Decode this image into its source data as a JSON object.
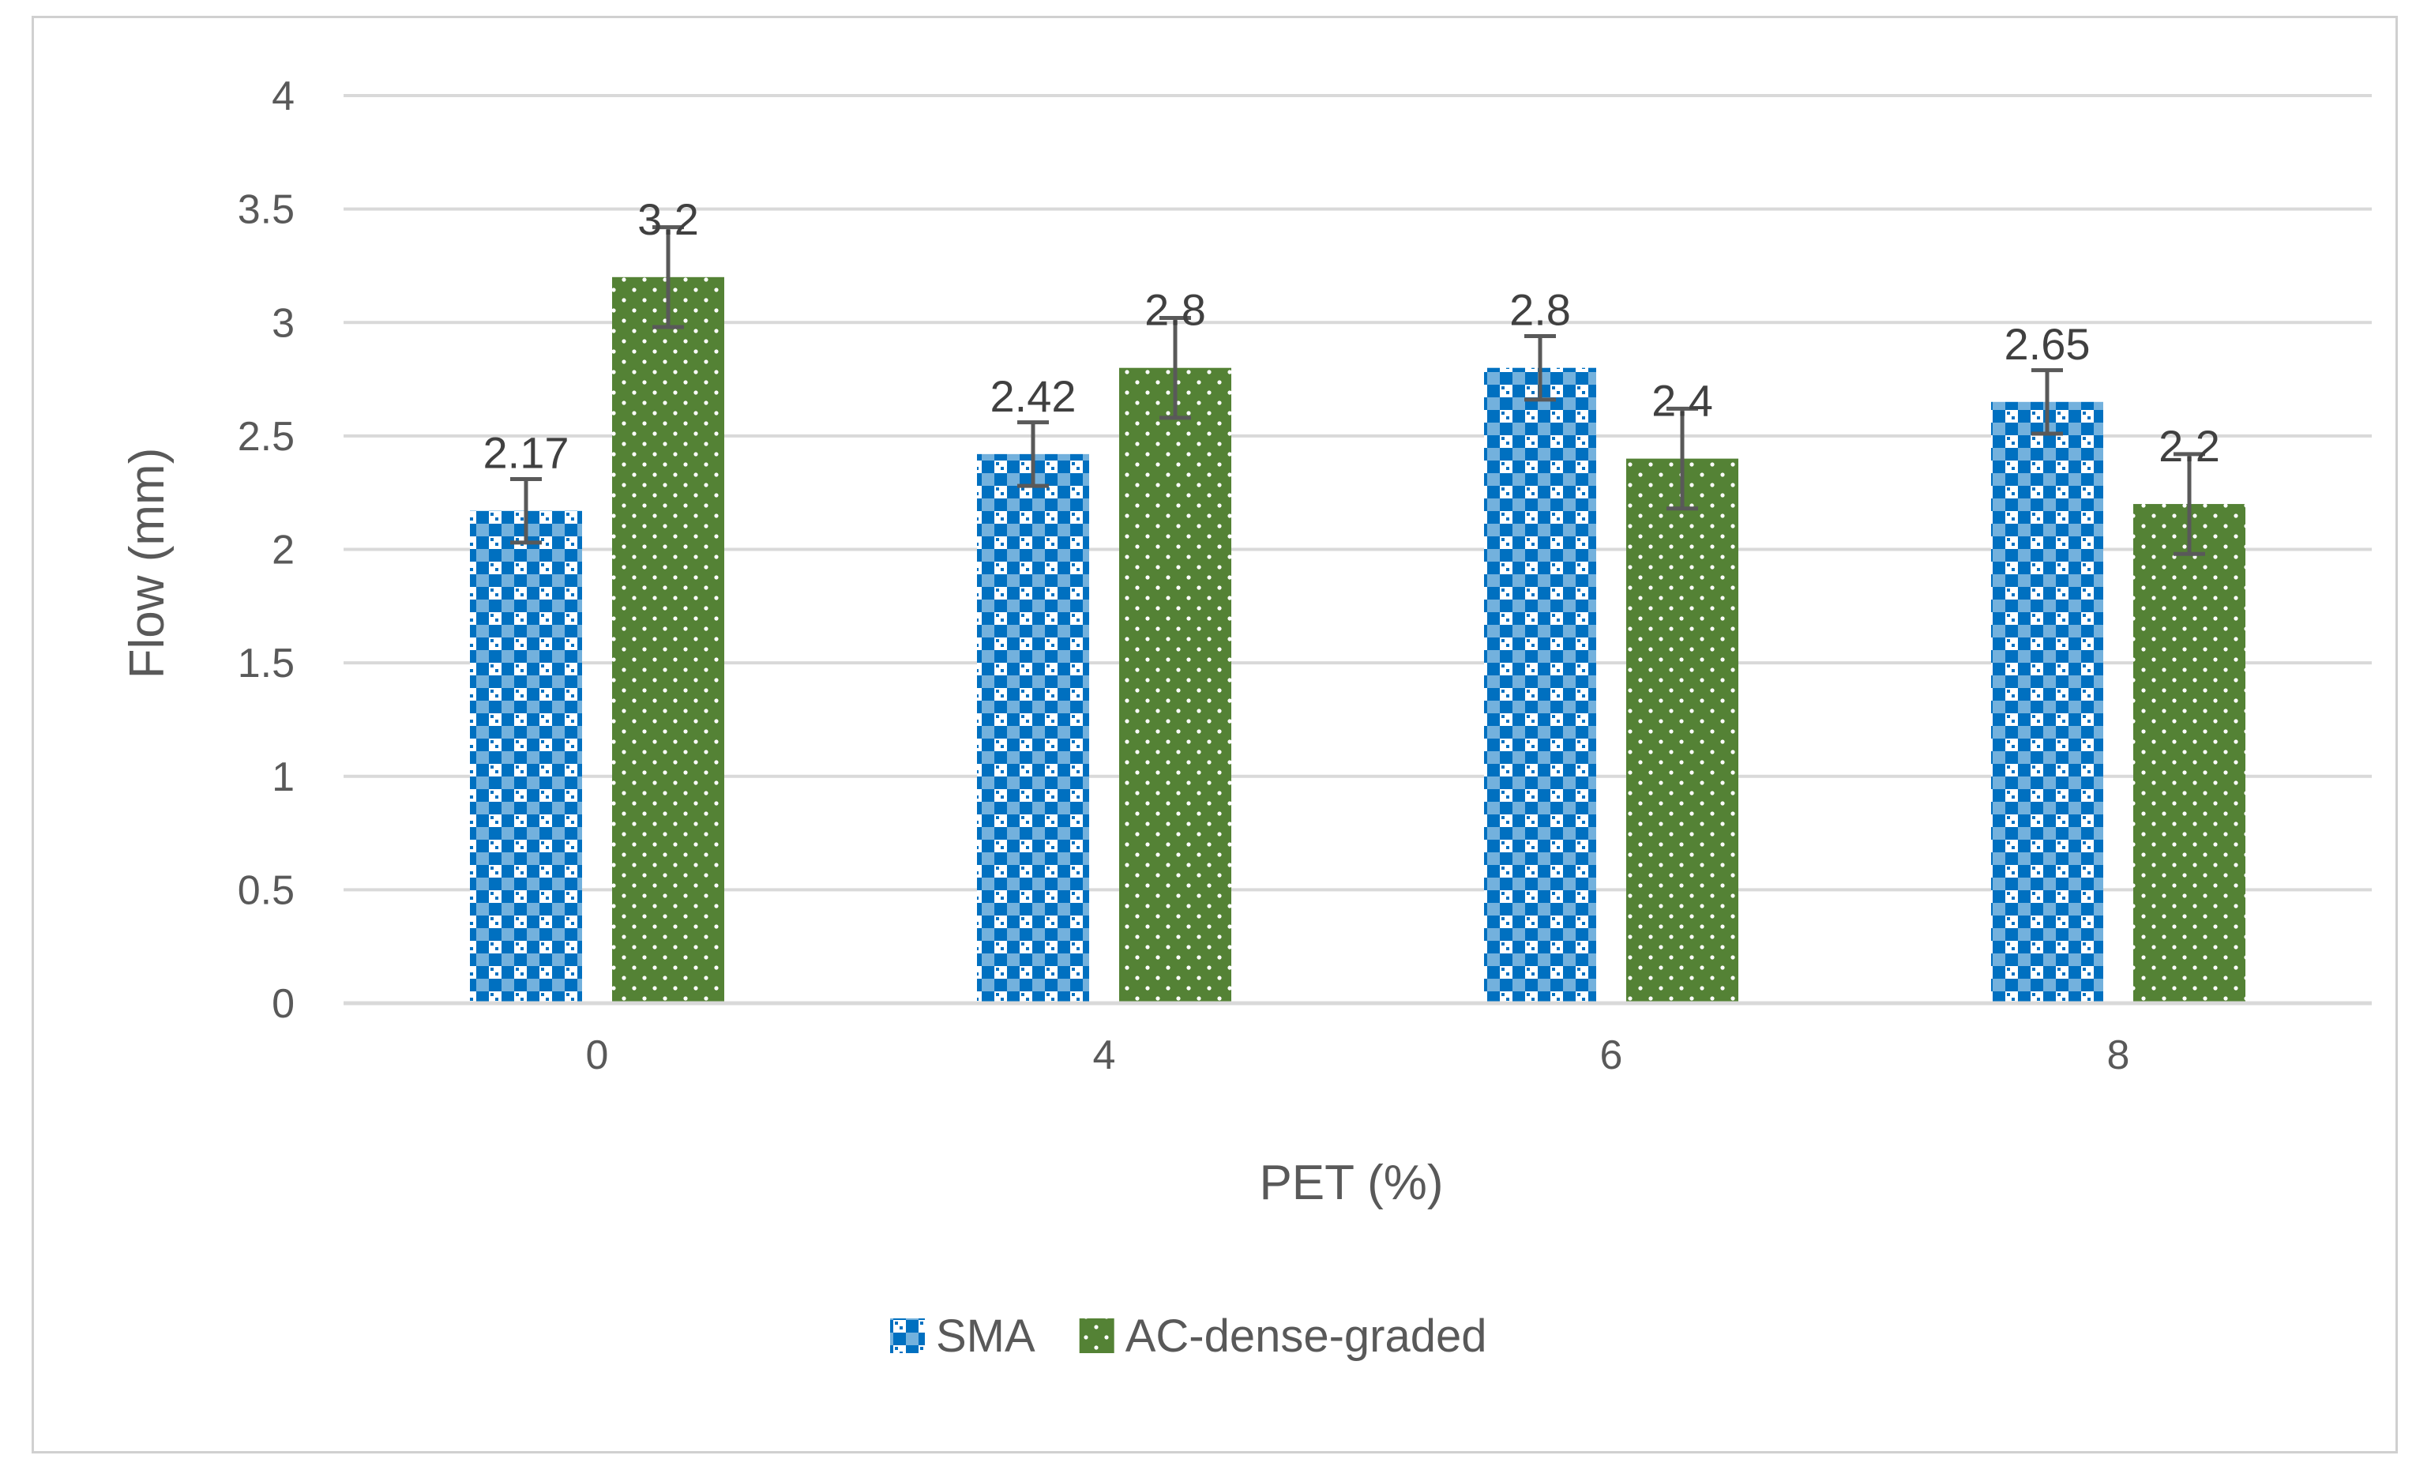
{
  "chart_data": {
    "type": "bar",
    "title": "",
    "xlabel": "PET (%)",
    "ylabel": "Flow (mm)",
    "ylim": [
      0,
      4
    ],
    "yticks": [
      "0",
      "0.5",
      "1",
      "1.5",
      "2",
      "2.5",
      "3",
      "3.5",
      "4"
    ],
    "ytick_values": [
      0,
      0.5,
      1,
      1.5,
      2,
      2.5,
      3,
      3.5,
      4
    ],
    "categories": [
      "0",
      "4",
      "6",
      "8"
    ],
    "grid": true,
    "legend_position": "bottom",
    "series": [
      {
        "name": "SMA",
        "color": "#0070c0",
        "values": [
          2.17,
          2.42,
          2.8,
          2.65
        ],
        "labels": [
          "2.17",
          "2.42",
          "2.8",
          "2.65"
        ],
        "error": [
          0.14,
          0.14,
          0.14,
          0.14
        ]
      },
      {
        "name": "AC-dense-graded",
        "color": "#548235",
        "values": [
          3.2,
          2.8,
          2.4,
          2.2
        ],
        "labels": [
          "3.2",
          "2.8",
          "2.4",
          "2.2"
        ],
        "error": [
          0.22,
          0.22,
          0.22,
          0.22
        ]
      }
    ]
  }
}
